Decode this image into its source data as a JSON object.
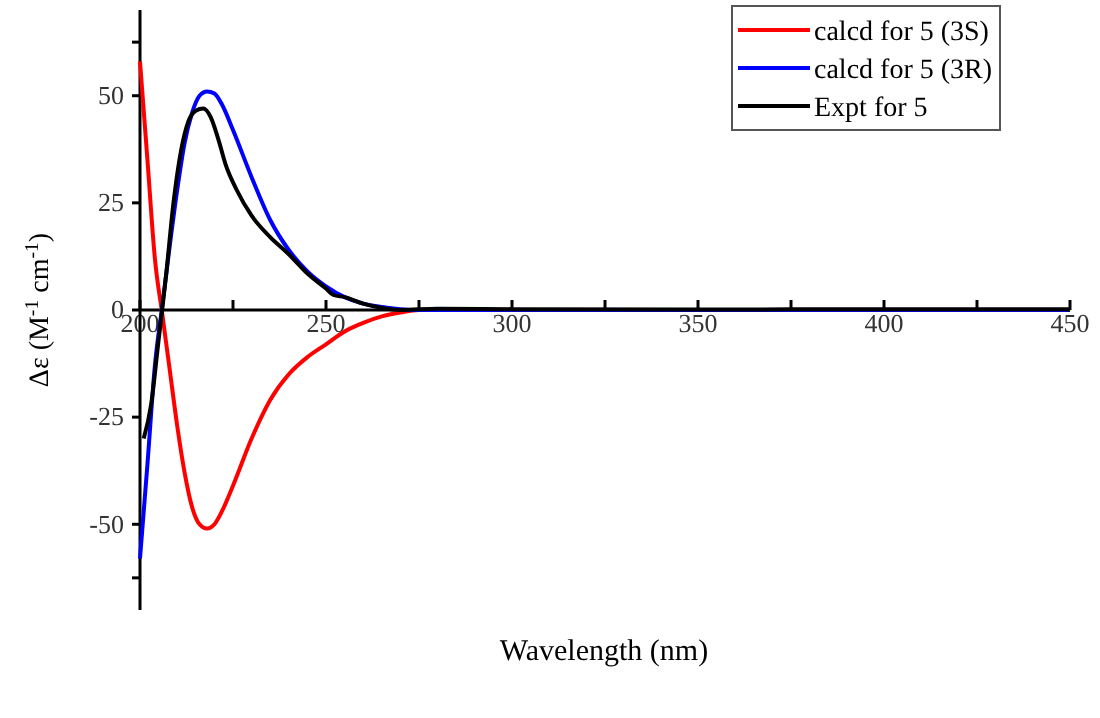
{
  "chart_data": {
    "type": "line",
    "xlabel": "Wavelength (nm)",
    "ylabel": "Δε (M$^{-1}$ cm$^{-1}$)",
    "xlim": [
      200,
      450
    ],
    "ylim": [
      -70,
      70
    ],
    "xticks": [
      200,
      {
        "value": 225,
        "label": null
      },
      250,
      {
        "value": 275,
        "label": null
      },
      300,
      {
        "value": 325,
        "label": null
      },
      350,
      {
        "value": 375,
        "label": null
      },
      400,
      {
        "value": 425,
        "label": null
      },
      450
    ],
    "yticks": [
      {
        "value": -62.5,
        "label": null
      },
      -50,
      -25,
      0,
      25,
      50,
      {
        "value": 62.5,
        "label": null
      }
    ],
    "grid": false,
    "legend": "top right",
    "line_style": "solid",
    "marker": "none",
    "series": [
      {
        "name": "calcd for 5 (3S)",
        "color": "#ff0000",
        "x": [
          200,
          202,
          204,
          206,
          208,
          210,
          212,
          214,
          216,
          218,
          220,
          222,
          225,
          230,
          235,
          240,
          245,
          250,
          255,
          260,
          265,
          270,
          275,
          300,
          450
        ],
        "values": [
          58,
          35,
          12,
          -1,
          -14,
          -27,
          -38,
          -46,
          -50,
          -51,
          -50,
          -47,
          -41,
          -30,
          -21,
          -15,
          -11,
          -8,
          -5,
          -3,
          -1.5,
          -0.6,
          0,
          0,
          0
        ]
      },
      {
        "name": "calcd for 5 (3R)",
        "color": "#0000ff",
        "x": [
          200,
          202,
          204,
          206,
          208,
          210,
          212,
          214,
          216,
          218,
          220,
          222,
          225,
          230,
          235,
          240,
          245,
          250,
          255,
          260,
          265,
          270,
          275,
          300,
          450
        ],
        "values": [
          -58,
          -36,
          -13,
          1,
          15,
          28,
          39,
          46,
          50,
          51,
          50.5,
          48,
          42,
          31,
          21,
          14,
          9,
          5.5,
          3,
          1.5,
          0.7,
          0.2,
          0,
          0,
          0
        ]
      },
      {
        "name": "Expt for 5",
        "color": "#000000",
        "x": [
          201,
          203,
          205,
          207,
          209,
          211,
          213,
          215,
          217,
          219,
          221,
          223,
          226,
          230,
          235,
          240,
          245,
          250,
          252,
          255,
          260,
          265,
          270,
          280,
          300,
          350,
          400,
          450
        ],
        "values": [
          -30,
          -22,
          -7,
          8,
          25,
          37,
          44,
          46.5,
          47,
          45,
          40,
          34,
          28,
          22,
          17,
          13,
          8.5,
          5,
          3.5,
          3,
          1.5,
          0.5,
          0,
          0.3,
          0.2,
          0.1,
          0.2,
          0.2
        ]
      }
    ]
  }
}
